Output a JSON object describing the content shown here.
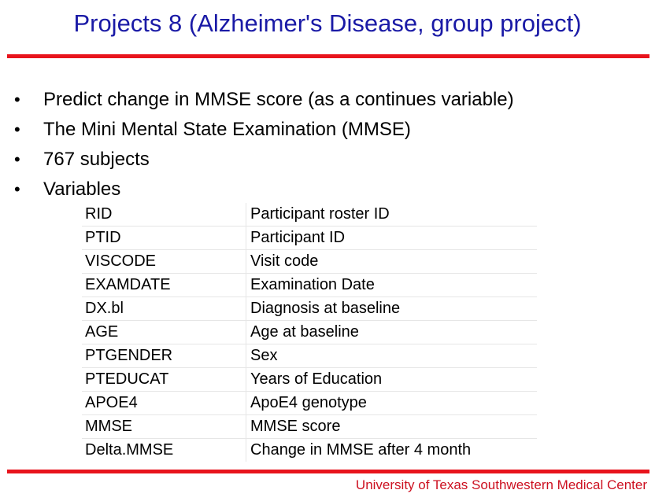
{
  "slide": {
    "title": "Projects 8 (Alzheimer's Disease, group project)",
    "bullets": [
      "Predict change in MMSE score (as a continues variable)",
      "The Mini Mental State Examination (MMSE)",
      "767 subjects",
      "Variables"
    ],
    "variables": [
      {
        "name": "RID",
        "description": "Participant roster ID"
      },
      {
        "name": "PTID",
        "description": "Participant ID"
      },
      {
        "name": "VISCODE",
        "description": "Visit code"
      },
      {
        "name": "EXAMDATE",
        "description": "Examination Date"
      },
      {
        "name": "DX.bl",
        "description": "Diagnosis at baseline"
      },
      {
        "name": "AGE",
        "description": "Age at baseline"
      },
      {
        "name": "PTGENDER",
        "description": "Sex"
      },
      {
        "name": "PTEDUCAT",
        "description": "Years of Education"
      },
      {
        "name": "APOE4",
        "description": "ApoE4 genotype"
      },
      {
        "name": "MMSE",
        "description": "MMSE score"
      },
      {
        "name": "Delta.MMSE",
        "description": "Change in MMSE after 4 month"
      }
    ],
    "footer": "University of Texas Southwestern Medical Center"
  },
  "colors": {
    "title": "#1a1aa6",
    "rule": "#e8141c",
    "footer": "#cc1020"
  }
}
